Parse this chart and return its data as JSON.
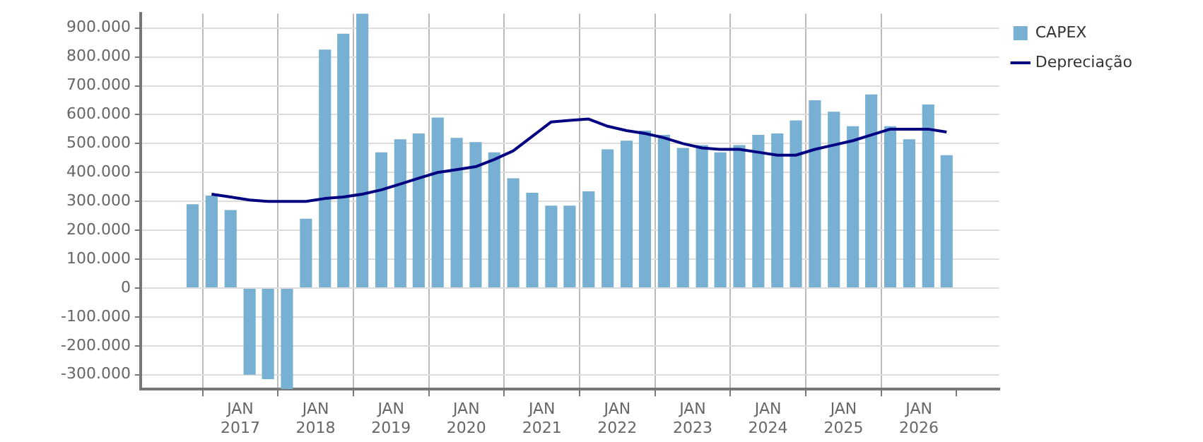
{
  "chart_data": {
    "type": "bar",
    "x": [
      "2016-05-15",
      "2016-08-15",
      "2016-11-15",
      "2017-02-15",
      "2017-05-15",
      "2017-08-15",
      "2017-11-15",
      "2018-02-15",
      "2018-05-15",
      "2018-08-15",
      "2018-11-15",
      "2019-02-15",
      "2019-05-15",
      "2019-08-15",
      "2019-11-15",
      "2020-02-15",
      "2020-05-15",
      "2020-08-15",
      "2020-11-15",
      "2021-02-15",
      "2021-05-15",
      "2021-08-15",
      "2021-11-15",
      "2022-02-15",
      "2022-05-15",
      "2022-08-15",
      "2022-11-15",
      "2023-02-15",
      "2023-05-15",
      "2023-08-15",
      "2023-11-15",
      "2024-02-15",
      "2024-05-15",
      "2024-08-15",
      "2024-11-15",
      "2025-02-15",
      "2025-05-15",
      "2025-08-15",
      "2025-11-15",
      "2026-02-15",
      "2026-05-15"
    ],
    "series": [
      {
        "name": "CAPEX",
        "color": "#77b0d3",
        "values": [
          290000,
          320000,
          270000,
          -300000,
          -315000,
          -350000,
          240000,
          825000,
          880000,
          950000,
          470000,
          515000,
          535000,
          590000,
          520000,
          505000,
          470000,
          380000,
          330000,
          285000,
          285000,
          335000,
          480000,
          510000,
          545000,
          530000,
          485000,
          495000,
          470000,
          495000,
          530000,
          535000,
          580000,
          650000,
          610000,
          560000,
          670000,
          560000,
          515000,
          635000,
          460000
        ]
      },
      {
        "name": "Depreciação",
        "type": "line",
        "color": "#000080",
        "values": [
          null,
          325000,
          315000,
          305000,
          300000,
          300000,
          300000,
          310000,
          315000,
          325000,
          340000,
          360000,
          380000,
          400000,
          410000,
          420000,
          445000,
          475000,
          525000,
          575000,
          580000,
          585000,
          560000,
          545000,
          535000,
          520000,
          500000,
          485000,
          480000,
          480000,
          470000,
          460000,
          460000,
          480000,
          495000,
          510000,
          530000,
          550000,
          550000,
          550000,
          540000
        ]
      }
    ],
    "xlim": [
      "2016-04-01",
      "2026-07-01"
    ],
    "xticks": [
      {
        "value": "2017-01-01",
        "label": "JAN 2017"
      },
      {
        "value": "2018-01-01",
        "label": "JAN 2018"
      },
      {
        "value": "2019-01-01",
        "label": "JAN 2019"
      },
      {
        "value": "2020-01-01",
        "label": "JAN 2020"
      },
      {
        "value": "2021-01-01",
        "label": "JAN 2021"
      },
      {
        "value": "2022-01-01",
        "label": "JAN 2022"
      },
      {
        "value": "2023-01-01",
        "label": "JAN 2023"
      },
      {
        "value": "2024-01-01",
        "label": "JAN 2024"
      },
      {
        "value": "2025-01-01",
        "label": "JAN 2025"
      },
      {
        "value": "2026-01-01",
        "label": "JAN 2026"
      }
    ],
    "ylim": [
      -350000,
      950000
    ],
    "yticks": [
      {
        "value": -300000,
        "label": "-300.000"
      },
      {
        "value": -200000,
        "label": "-200.000"
      },
      {
        "value": -100000,
        "label": "-100.000"
      },
      {
        "value": 0,
        "label": "0"
      },
      {
        "value": 100000,
        "label": "100.000"
      },
      {
        "value": 200000,
        "label": "200.000"
      },
      {
        "value": 300000,
        "label": "300.000"
      },
      {
        "value": 400000,
        "label": "400.000"
      },
      {
        "value": 500000,
        "label": "500.000"
      },
      {
        "value": 600000,
        "label": "600.000"
      },
      {
        "value": 700000,
        "label": "700.000"
      },
      {
        "value": 800000,
        "label": "800.000"
      },
      {
        "value": 900000,
        "label": "900.000"
      }
    ],
    "grid": true,
    "legend": "top right",
    "marker": "none",
    "line_style": "solid"
  }
}
